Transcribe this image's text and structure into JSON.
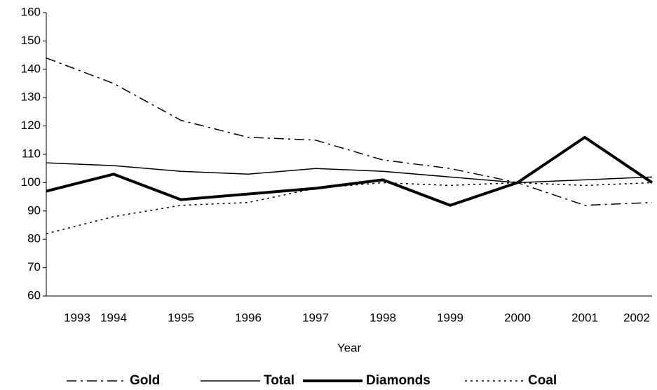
{
  "chart_data": {
    "type": "line",
    "categories": [
      "1993",
      "1994",
      "1995",
      "1996",
      "1997",
      "1998",
      "1999",
      "2000",
      "2001",
      "2002"
    ],
    "x_label": "Year",
    "series": [
      {
        "name": "Gold",
        "color": "#000000",
        "linestyle": "dashdot",
        "linewidth": 1.5,
        "values": [
          144,
          135,
          122,
          116,
          115,
          108,
          105,
          100,
          92,
          93
        ]
      },
      {
        "name": "Total",
        "color": "#000000",
        "linestyle": "solid",
        "linewidth": 1.5,
        "values": [
          107,
          106,
          104,
          103,
          105,
          104,
          102,
          100,
          101,
          102
        ]
      },
      {
        "name": "Diamonds",
        "color": "#000000",
        "linestyle": "solid",
        "linewidth": 4,
        "values": [
          97,
          103,
          94,
          96,
          98,
          101,
          92,
          100,
          116,
          100
        ]
      },
      {
        "name": "Coal",
        "color": "#000000",
        "linestyle": "dotted",
        "linewidth": 1.5,
        "values": [
          82,
          88,
          92,
          93,
          98,
          100,
          99,
          100,
          99,
          100
        ]
      }
    ],
    "ylim": [
      60,
      160
    ],
    "yticks": [
      60,
      70,
      80,
      90,
      100,
      110,
      120,
      130,
      140,
      150,
      160
    ],
    "grid": false,
    "legend": "bottom"
  }
}
